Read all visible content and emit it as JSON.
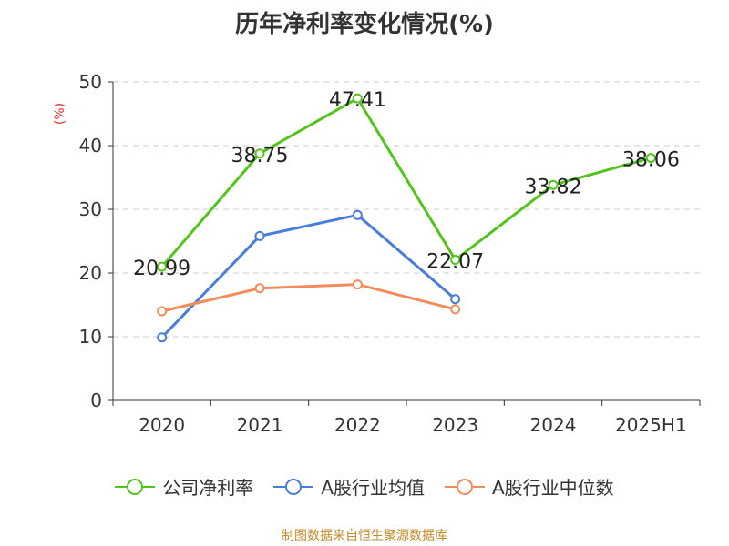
{
  "chart_data": {
    "type": "line",
    "title": "历年净利率变化情况(%)",
    "ylabel": "(%)",
    "ylim": [
      0,
      50
    ],
    "yticks": [
      0,
      10,
      20,
      30,
      40,
      50
    ],
    "categories": [
      "2020",
      "2021",
      "2022",
      "2023",
      "2024",
      "2025H1"
    ],
    "grid": true,
    "legend_position": "bottom",
    "series": [
      {
        "name": "公司净利率",
        "color": "#52c41a",
        "values": [
          20.99,
          38.75,
          47.41,
          22.07,
          33.82,
          38.06
        ],
        "labels": [
          "20.99",
          "38.75",
          "47.41",
          "22.07",
          "33.82",
          "38.06"
        ]
      },
      {
        "name": "A股行业均值",
        "color": "#4a7ddb",
        "values": [
          9.9,
          25.8,
          29.1,
          15.9,
          null,
          null
        ]
      },
      {
        "name": "A股行业中位数",
        "color": "#f28c5a",
        "values": [
          14.0,
          17.6,
          18.2,
          14.3,
          null,
          null
        ]
      }
    ]
  },
  "source": "制图数据来自恒生聚源数据库"
}
